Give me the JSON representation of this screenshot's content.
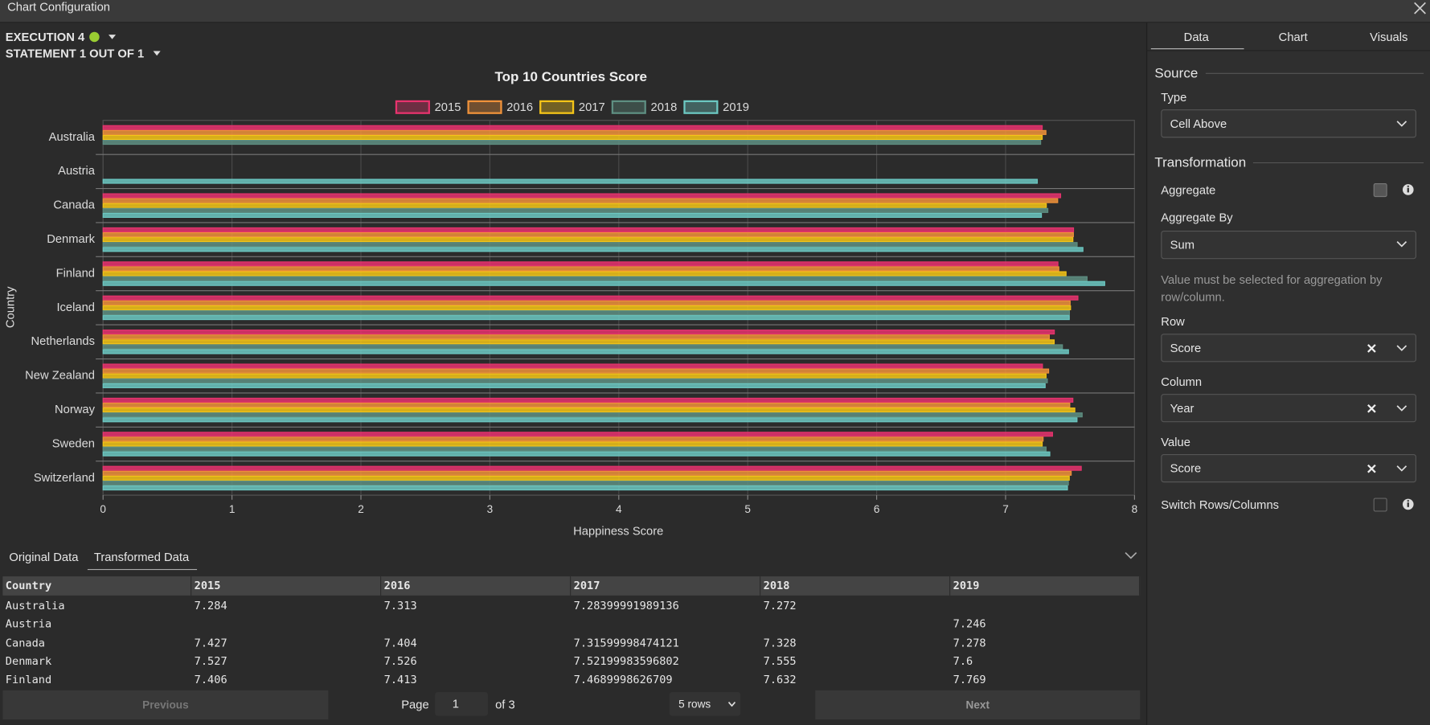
{
  "dialog": {
    "title": "Chart Configuration"
  },
  "execution": {
    "label": "EXECUTION 4",
    "statement": "STATEMENT 1 OUT OF 1"
  },
  "chart_data": {
    "type": "bar",
    "orientation": "horizontal",
    "title": "Top 10 Countries Score",
    "categories": [
      "Australia",
      "Austria",
      "Canada",
      "Denmark",
      "Finland",
      "Iceland",
      "Netherlands",
      "New Zealand",
      "Norway",
      "Sweden",
      "Switzerland"
    ],
    "series": [
      {
        "name": "2015",
        "color": "#e8336e",
        "values": [
          7.284,
          null,
          7.427,
          7.527,
          7.406,
          7.561,
          7.378,
          7.286,
          7.522,
          7.364,
          7.587
        ]
      },
      {
        "name": "2016",
        "color": "#f0923a",
        "values": [
          7.313,
          null,
          7.404,
          7.526,
          7.413,
          7.501,
          7.339,
          7.334,
          7.498,
          7.291,
          7.509
        ]
      },
      {
        "name": "2017",
        "color": "#f5c518",
        "values": [
          7.284,
          null,
          7.316,
          7.522,
          7.469,
          7.504,
          7.377,
          7.314,
          7.537,
          7.284,
          7.494
        ]
      },
      {
        "name": "2018",
        "color": "#5e8f82",
        "values": [
          7.272,
          null,
          7.328,
          7.555,
          7.632,
          7.495,
          7.441,
          7.324,
          7.594,
          7.314,
          7.487
        ]
      },
      {
        "name": "2019",
        "color": "#6cc8c2",
        "values": [
          null,
          7.246,
          7.278,
          7.6,
          7.769,
          7.494,
          7.488,
          7.307,
          7.554,
          7.343,
          7.48
        ]
      }
    ],
    "xlim": [
      0,
      8
    ],
    "xticks": [
      0,
      1,
      2,
      3,
      4,
      5,
      6,
      7,
      8
    ],
    "x_label": "Happiness Score",
    "y_label": "Country",
    "grid": true,
    "legend": "top"
  },
  "data_tabs": [
    "Original Data",
    "Transformed Data"
  ],
  "table": {
    "columns": [
      "Country",
      "2015",
      "2016",
      "2017",
      "2018",
      "2019"
    ],
    "rows": [
      [
        "Australia",
        "7.284",
        "7.313",
        "7.28399991989136",
        "7.272",
        null
      ],
      [
        "Austria",
        null,
        null,
        null,
        null,
        "7.246"
      ],
      [
        "Canada",
        "7.427",
        "7.404",
        "7.31599998474121",
        "7.328",
        "7.278"
      ],
      [
        "Denmark",
        "7.527",
        "7.526",
        "7.52199983596802",
        "7.555",
        "7.6"
      ],
      [
        "Finland",
        "7.406",
        "7.413",
        "7.4689998626709",
        "7.632",
        "7.769"
      ]
    ]
  },
  "pagination": {
    "previous": "Previous",
    "page_label": "Page",
    "page": "1",
    "of": "of 3",
    "rows": "5 rows",
    "next": "Next"
  },
  "panel": {
    "tabs": [
      "Data",
      "Chart",
      "Visuals"
    ],
    "source": "Source",
    "type_label": "Type",
    "type_value": "Cell Above",
    "transformation": "Transformation",
    "aggregate": "Aggregate",
    "aggregate_by": "Aggregate By",
    "aggregate_by_value": "Sum",
    "hint": "Value must be selected for aggregation by row/column.",
    "row": "Row",
    "row_value": "Score",
    "column": "Column",
    "column_value": "Year",
    "value": "Value",
    "value_value": "Score",
    "switch": "Switch Rows/Columns"
  }
}
